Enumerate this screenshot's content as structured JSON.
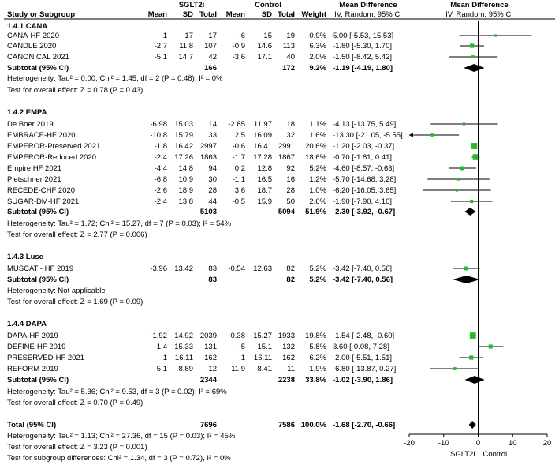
{
  "chart_data": {
    "type": "forest",
    "headers": {
      "group1": "SGLT2i",
      "group2": "Control",
      "study": "Study or Subgroup",
      "mean": "Mean",
      "sd": "SD",
      "total": "Total",
      "weight": "Weight",
      "md_title": "Mean Difference",
      "md_method": "IV, Random, 95% CI",
      "plot_title": "Mean Difference",
      "plot_method": "IV, Random, 95% CI"
    },
    "subgroups": [
      {
        "title": "1.4.1 CANA",
        "studies": [
          {
            "name": "CANA-HF 2020",
            "m1": "-1",
            "sd1": "17",
            "n1": "17",
            "m2": "-6",
            "sd2": "15",
            "n2": "19",
            "weight": "0.9%",
            "ci": "5.00 [-5.53, 15.53]",
            "est": 5.0,
            "lo": -5.53,
            "hi": 15.53,
            "w": 0.9
          },
          {
            "name": "CANDLE 2020",
            "m1": "-2.7",
            "sd1": "11.8",
            "n1": "107",
            "m2": "-0.9",
            "sd2": "14.6",
            "n2": "113",
            "weight": "6.3%",
            "ci": "-1.80 [-5.30, 1.70]",
            "est": -1.8,
            "lo": -5.3,
            "hi": 1.7,
            "w": 6.3
          },
          {
            "name": "CANONICAL 2021",
            "m1": "-5.1",
            "sd1": "14.7",
            "n1": "42",
            "m2": "-3.6",
            "sd2": "17.1",
            "n2": "40",
            "weight": "2.0%",
            "ci": "-1.50 [-8.42, 5.42]",
            "est": -1.5,
            "lo": -8.42,
            "hi": 5.42,
            "w": 2.0
          }
        ],
        "subtotal": {
          "label": "Subtotal (95% CI)",
          "n1": "166",
          "n2": "172",
          "weight": "9.2%",
          "ci": "-1.19 [-4.19, 1.80]",
          "est": -1.19,
          "lo": -4.19,
          "hi": 1.8
        },
        "heterogeneity": "Heterogeneity: Tau² = 0.00; Chi² = 1.45, df = 2 (P = 0.48); I² = 0%",
        "overall": "Test for overall effect: Z = 0.78 (P = 0.43)"
      },
      {
        "title": "1.4.2 EMPA",
        "studies": [
          {
            "name": "De Boer 2019",
            "m1": "-6.98",
            "sd1": "15.03",
            "n1": "14",
            "m2": "-2.85",
            "sd2": "11.97",
            "n2": "18",
            "weight": "1.1%",
            "ci": "-4.13 [-13.75, 5.49]",
            "est": -4.13,
            "lo": -13.75,
            "hi": 5.49,
            "w": 1.1
          },
          {
            "name": "EMBRACE-HF 2020",
            "m1": "-10.8",
            "sd1": "15.79",
            "n1": "33",
            "m2": "2.5",
            "sd2": "16.09",
            "n2": "32",
            "weight": "1.6%",
            "ci": "-13.30 [-21.05, -5.55]",
            "est": -13.3,
            "lo": -21.05,
            "hi": -5.55,
            "w": 1.6
          },
          {
            "name": "EMPEROR-Preserved 2021",
            "m1": "-1.8",
            "sd1": "16.42",
            "n1": "2997",
            "m2": "-0.6",
            "sd2": "16.41",
            "n2": "2991",
            "weight": "20.6%",
            "ci": "-1.20 [-2.03, -0.37]",
            "est": -1.2,
            "lo": -2.03,
            "hi": -0.37,
            "w": 20.6
          },
          {
            "name": "EMPEROR-Reduced 2020",
            "m1": "-2.4",
            "sd1": "17.26",
            "n1": "1863",
            "m2": "-1.7",
            "sd2": "17.28",
            "n2": "1867",
            "weight": "18.6%",
            "ci": "-0.70 [-1.81, 0.41]",
            "est": -0.7,
            "lo": -1.81,
            "hi": 0.41,
            "w": 18.6
          },
          {
            "name": "Empire HF 2021",
            "m1": "-4.4",
            "sd1": "14.8",
            "n1": "94",
            "m2": "0.2",
            "sd2": "12.8",
            "n2": "92",
            "weight": "5.2%",
            "ci": "-4.60 [-8.57, -0.63]",
            "est": -4.6,
            "lo": -8.57,
            "hi": -0.63,
            "w": 5.2
          },
          {
            "name": "Pietschner 2021",
            "m1": "-6.8",
            "sd1": "10.9",
            "n1": "30",
            "m2": "-1.1",
            "sd2": "16.5",
            "n2": "16",
            "weight": "1.2%",
            "ci": "-5.70 [-14.68, 3.28]",
            "est": -5.7,
            "lo": -14.68,
            "hi": 3.28,
            "w": 1.2
          },
          {
            "name": "RECEDE-CHF 2020",
            "m1": "-2.6",
            "sd1": "18.9",
            "n1": "28",
            "m2": "3.6",
            "sd2": "18.7",
            "n2": "28",
            "weight": "1.0%",
            "ci": "-6.20 [-16.05, 3.65]",
            "est": -6.2,
            "lo": -16.05,
            "hi": 3.65,
            "w": 1.0
          },
          {
            "name": "SUGAR-DM-HF 2021",
            "m1": "-2.4",
            "sd1": "13.8",
            "n1": "44",
            "m2": "-0.5",
            "sd2": "15.9",
            "n2": "50",
            "weight": "2.6%",
            "ci": "-1.90 [-7.90, 4.10]",
            "est": -1.9,
            "lo": -7.9,
            "hi": 4.1,
            "w": 2.6
          }
        ],
        "subtotal": {
          "label": "Subtotal (95% CI)",
          "n1": "5103",
          "n2": "5094",
          "weight": "51.9%",
          "ci": "-2.30 [-3.92, -0.67]",
          "est": -2.3,
          "lo": -3.92,
          "hi": -0.67
        },
        "heterogeneity": "Heterogeneity: Tau² = 1.72; Chi² = 15.27, df = 7 (P = 0.03); I² = 54%",
        "overall": "Test for overall effect: Z = 2.77 (P = 0.006)"
      },
      {
        "title": "1.4.3 Luse",
        "studies": [
          {
            "name": "MUSCAT - HF 2019",
            "m1": "-3.96",
            "sd1": "13.42",
            "n1": "83",
            "m2": "-0.54",
            "sd2": "12.63",
            "n2": "82",
            "weight": "5.2%",
            "ci": "-3.42 [-7.40, 0.56]",
            "est": -3.42,
            "lo": -7.4,
            "hi": 0.56,
            "w": 5.2
          }
        ],
        "subtotal": {
          "label": "Subtotal (95% CI)",
          "n1": "83",
          "n2": "82",
          "weight": "5.2%",
          "ci": "-3.42 [-7.40, 0.56]",
          "est": -3.42,
          "lo": -7.4,
          "hi": 0.56
        },
        "heterogeneity": "Heterogeneity: Not applicable",
        "overall": "Test for overall effect: Z = 1.69 (P = 0.09)"
      },
      {
        "title": "1.4.4 DAPA",
        "studies": [
          {
            "name": "DAPA-HF 2019",
            "m1": "-1.92",
            "sd1": "14.92",
            "n1": "2039",
            "m2": "-0.38",
            "sd2": "15.27",
            "n2": "1933",
            "weight": "19.8%",
            "ci": "-1.54 [-2.48, -0.60]",
            "est": -1.54,
            "lo": -2.48,
            "hi": -0.6,
            "w": 19.8
          },
          {
            "name": "DEFINE-HF 2019",
            "m1": "-1.4",
            "sd1": "15.33",
            "n1": "131",
            "m2": "-5",
            "sd2": "15.1",
            "n2": "132",
            "weight": "5.8%",
            "ci": "3.60 [-0.08, 7.28]",
            "est": 3.6,
            "lo": -0.08,
            "hi": 7.28,
            "w": 5.8
          },
          {
            "name": "PRESERVED-HF 2021",
            "m1": "-1",
            "sd1": "16.11",
            "n1": "162",
            "m2": "1",
            "sd2": "16.11",
            "n2": "162",
            "weight": "6.2%",
            "ci": "-2.00 [-5.51, 1.51]",
            "est": -2.0,
            "lo": -5.51,
            "hi": 1.51,
            "w": 6.2
          },
          {
            "name": "REFORM 2019",
            "m1": "5.1",
            "sd1": "8.89",
            "n1": "12",
            "m2": "11.9",
            "sd2": "8.41",
            "n2": "11",
            "weight": "1.9%",
            "ci": "-6.80 [-13.87, 0.27]",
            "est": -6.8,
            "lo": -13.87,
            "hi": 0.27,
            "w": 1.9
          }
        ],
        "subtotal": {
          "label": "Subtotal (95% CI)",
          "n1": "2344",
          "n2": "2238",
          "weight": "33.8%",
          "ci": "-1.02 [-3.90, 1.86]",
          "est": -1.02,
          "lo": -3.9,
          "hi": 1.86
        },
        "heterogeneity": "Heterogeneity: Tau² = 5.36; Chi² = 9.53, df = 3 (P = 0.02); I² = 69%",
        "overall": "Test for overall effect: Z = 0.70 (P = 0.49)"
      }
    ],
    "total": {
      "label": "Total (95% CI)",
      "n1": "7696",
      "n2": "7586",
      "weight": "100.0%",
      "ci": "-1.68 [-2.70, -0.66]",
      "est": -1.68,
      "lo": -2.7,
      "hi": -0.66,
      "heterogeneity": "Heterogeneity: Tau² = 1.13; Chi² = 27.36, df = 15 (P = 0.03); I² = 45%",
      "overall": "Test for overall effect: Z = 3.23 (P = 0.001)",
      "subgroup_diff": "Test for subgroup differences: Chi² = 1.34, df = 3 (P = 0.72), I² = 0%"
    },
    "x_axis": {
      "min": -20,
      "max": 20,
      "ticks": [
        -20,
        -10,
        0,
        10,
        20
      ],
      "tick_labels": [
        "-20",
        "-10",
        "0",
        "10",
        "20"
      ],
      "left_label": "SGLT2i",
      "right_label": "Control"
    },
    "colors": {
      "marker": "#2db82d",
      "diamond": "#000000",
      "line": "#000000"
    }
  }
}
